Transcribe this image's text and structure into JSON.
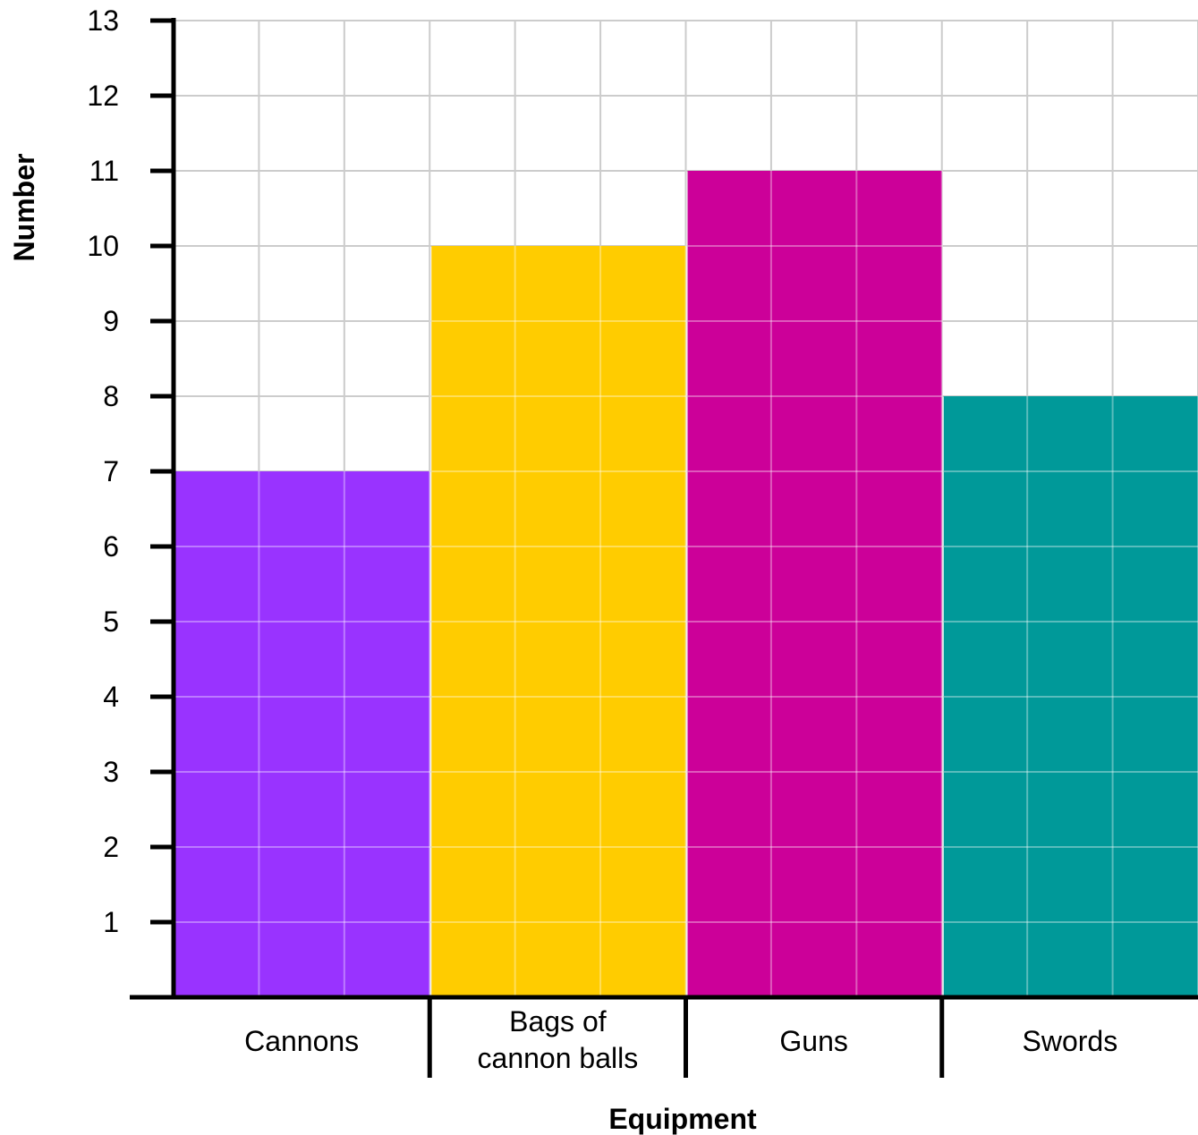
{
  "chart_data": {
    "type": "bar",
    "title": "",
    "xlabel": "Equipment",
    "ylabel": "Number",
    "categories": [
      [
        "Cannons"
      ],
      [
        "Bags of",
        "cannon balls"
      ],
      [
        "Guns"
      ],
      [
        "Swords"
      ]
    ],
    "values": [
      7,
      10,
      11,
      8
    ],
    "colors": [
      "#9933ff",
      "#ffcc00",
      "#cc0099",
      "#009999"
    ],
    "ylim": [
      0,
      13
    ],
    "yticks": [
      "1",
      "2",
      "3",
      "4",
      "5",
      "6",
      "7",
      "8",
      "9",
      "10",
      "11",
      "12",
      "13"
    ],
    "grid": true
  }
}
